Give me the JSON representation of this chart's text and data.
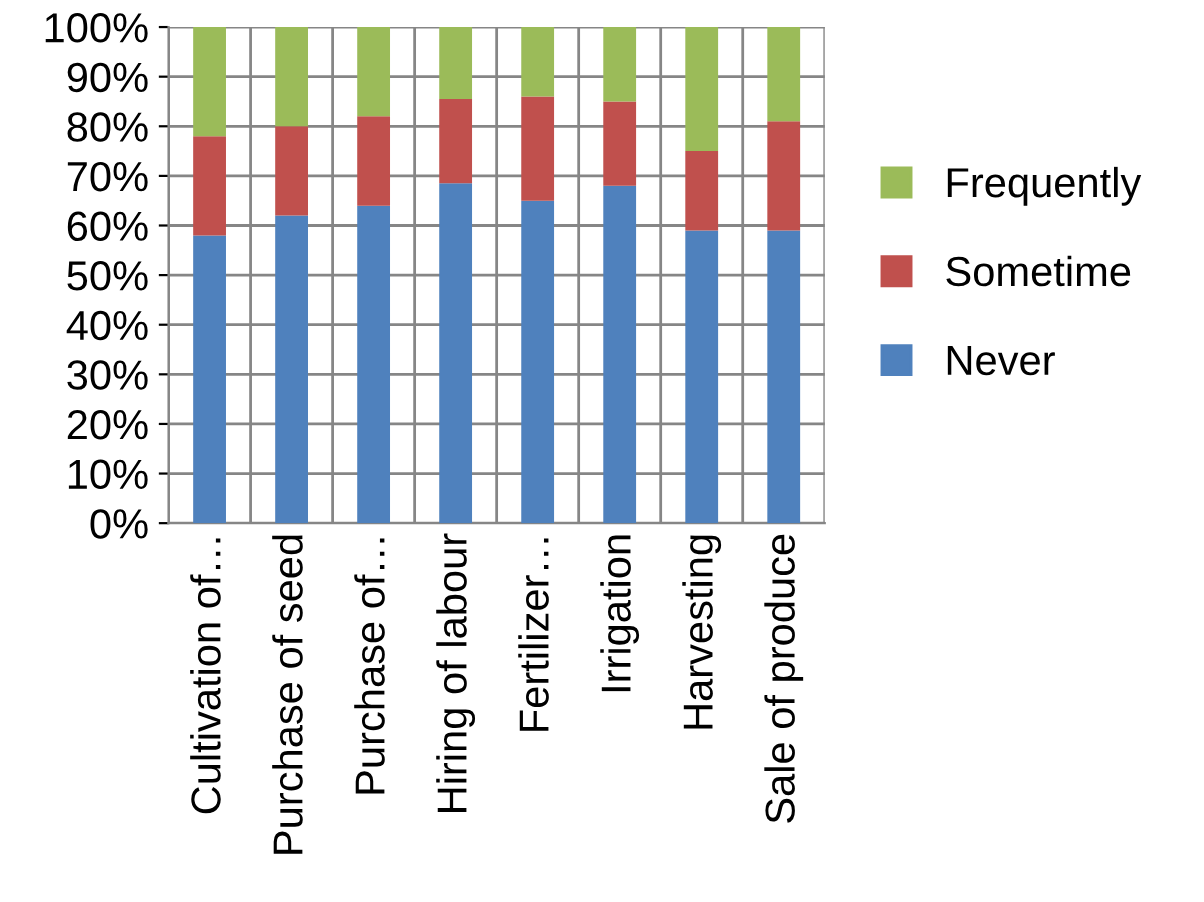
{
  "chart_data": {
    "type": "bar",
    "stacked": true,
    "categories": [
      "Cultivation of…",
      "Purchase of seed",
      "Purchase of…",
      "Hiring of labour",
      "Fertilizer…",
      "Irrigation",
      "Harvesting",
      "Sale of produce"
    ],
    "series": [
      {
        "name": "Never",
        "color": "#4f81bd",
        "values": [
          58,
          62,
          64,
          68.5,
          65,
          68,
          59,
          59
        ]
      },
      {
        "name": "Sometime",
        "color": "#c0504d",
        "values": [
          20,
          18,
          18,
          17,
          21,
          17,
          16,
          22
        ]
      },
      {
        "name": "Frequently",
        "color": "#9bbb59",
        "values": [
          22,
          20,
          18,
          14.5,
          14,
          15,
          25,
          19
        ]
      }
    ],
    "ylim": [
      0,
      100
    ],
    "yticks": [
      {
        "value": 0,
        "label": "0%"
      },
      {
        "value": 10,
        "label": "10%"
      },
      {
        "value": 20,
        "label": "20%"
      },
      {
        "value": 30,
        "label": "30%"
      },
      {
        "value": 40,
        "label": "40%"
      },
      {
        "value": 50,
        "label": "50%"
      },
      {
        "value": 60,
        "label": "60%"
      },
      {
        "value": 70,
        "label": "70%"
      },
      {
        "value": 80,
        "label": "80%"
      },
      {
        "value": 90,
        "label": "90%"
      },
      {
        "value": 100,
        "label": "100%"
      }
    ],
    "grid": true,
    "legend": "right"
  }
}
